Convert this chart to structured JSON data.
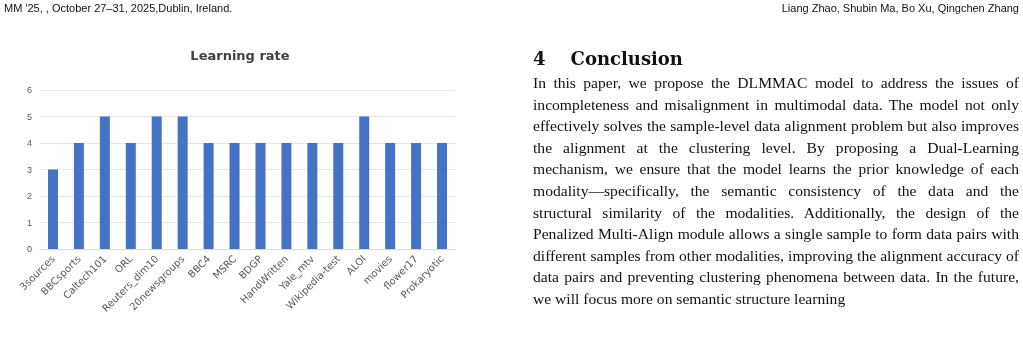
{
  "chart_data": {
    "type": "bar",
    "title": "Learning rate",
    "categories": [
      "3sources",
      "BBCsports",
      "Caltech101",
      "ORL",
      "Reuters_dim10",
      "20newsgroups",
      "BBC4",
      "MSRC",
      "BDGP",
      "HandWritten",
      "Yale_mtv",
      "Wikipedia-test",
      "ALOI",
      "movies",
      "flower17",
      "Prokaryotic"
    ],
    "values": [
      3,
      4,
      5,
      4,
      5,
      5,
      4,
      4,
      4,
      4,
      4,
      4,
      5,
      4,
      4,
      4
    ],
    "color": "#4472c4",
    "ylim": [
      0,
      6
    ],
    "yticks": [
      0,
      1,
      2,
      3,
      4,
      5,
      6
    ],
    "grid": "y",
    "annotations": [
      "MM '25, , October 27–31, 2025,Dublin, Ireland.",
      "Liang Zhao, Shubin Ma, Bo Xu, Qingchen Zhang",
      "4    Conclusion",
      "In this paper, we propose the DLMMAC model to address the issues of incompleteness and misalignment in multimodal data. The model not only effectively solves the sample-level data alignment problem but also improves the alignment at the clustering level. By proposing a Dual-Learning mechanism, we ensure that the model learns the prior knowledge of each modality—specifically, the semantic consistency of the data and the structural similarity of the modalities. Additionally, the design of the Penalized Multi-Align module allows a single sample to form data pairs with different samples from other modalities, improving the alignment accuracy of data pairs and preventing clustering phenomena between data. In the future, we will focus more on semantic structure learning"
    ]
  }
}
